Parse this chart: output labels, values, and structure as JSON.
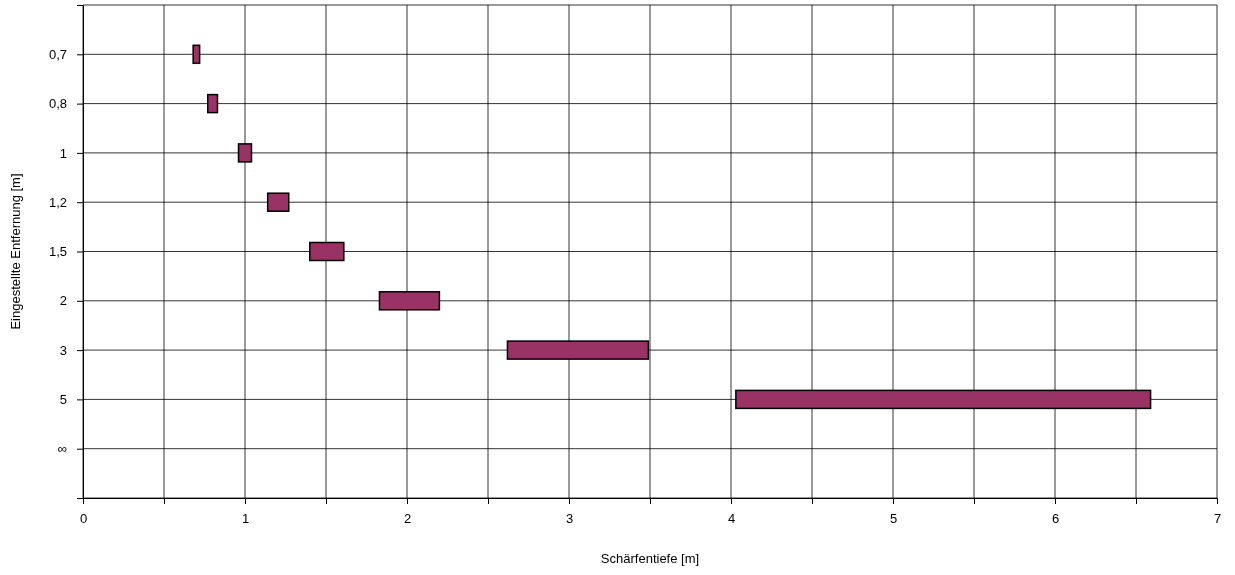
{
  "chart_data": {
    "type": "bar",
    "orientation": "horizontal",
    "xlabel": "Schärfentiefe [m]",
    "ylabel": "Eingestellte Entfernung [m]",
    "categories": [
      null,
      "0,7",
      "0,8",
      "1",
      "1,2",
      "1,5",
      "2",
      "3",
      "5",
      "∞",
      null
    ],
    "base": [
      null,
      0.68,
      0.77,
      0.96,
      1.14,
      1.4,
      1.83,
      2.62,
      4.03,
      null,
      null
    ],
    "values": [
      null,
      0.04,
      0.06,
      0.08,
      0.13,
      0.21,
      0.37,
      0.87,
      2.56,
      null,
      null
    ],
    "color": "#993366",
    "xlim": [
      0,
      7
    ],
    "xticks": [
      0,
      {
        "value": 0.5,
        "label": null
      },
      1,
      {
        "value": 1.5,
        "label": null
      },
      2,
      {
        "value": 2.5,
        "label": null
      },
      3,
      {
        "value": 3.5,
        "label": null
      },
      4,
      {
        "value": 4.5,
        "label": null
      },
      5,
      {
        "value": 5.5,
        "label": null
      },
      6,
      {
        "value": 6.5,
        "label": null
      },
      7
    ],
    "grid": true
  }
}
